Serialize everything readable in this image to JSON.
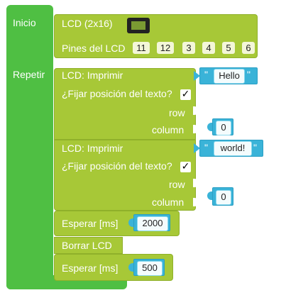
{
  "main": {
    "setup_label": "Inicio",
    "loop_label": "Repetir"
  },
  "lcd_setup": {
    "title": "LCD (2x16)",
    "pins_label": "Pines del LCD",
    "pins": [
      "11",
      "12",
      "3",
      "4",
      "5",
      "6"
    ]
  },
  "print1": {
    "title": "LCD: Imprimir",
    "text_value": "Hello",
    "quote_open": "\"",
    "quote_close": "\"",
    "position_label": "¿Fijar posición del texto?",
    "checkbox_mark": "✓",
    "row_label": "row",
    "column_label": "column",
    "column_value": "0"
  },
  "print2": {
    "title": "LCD: Imprimir",
    "text_value": "world!",
    "quote_open": "\"",
    "quote_close": "\"",
    "position_label": "¿Fijar posición del texto?",
    "checkbox_mark": "✓",
    "row_label": "row",
    "column_label": "column",
    "column_value": "0"
  },
  "wait1": {
    "label": "Esperar [ms]",
    "value": "2000"
  },
  "clear": {
    "label": "Borrar LCD"
  },
  "wait2": {
    "label": "Esperar [ms]",
    "value": "500"
  },
  "colors": {
    "main_green": "#4fbf43",
    "lime": "#a7c837",
    "blue": "#3ab3d8"
  }
}
